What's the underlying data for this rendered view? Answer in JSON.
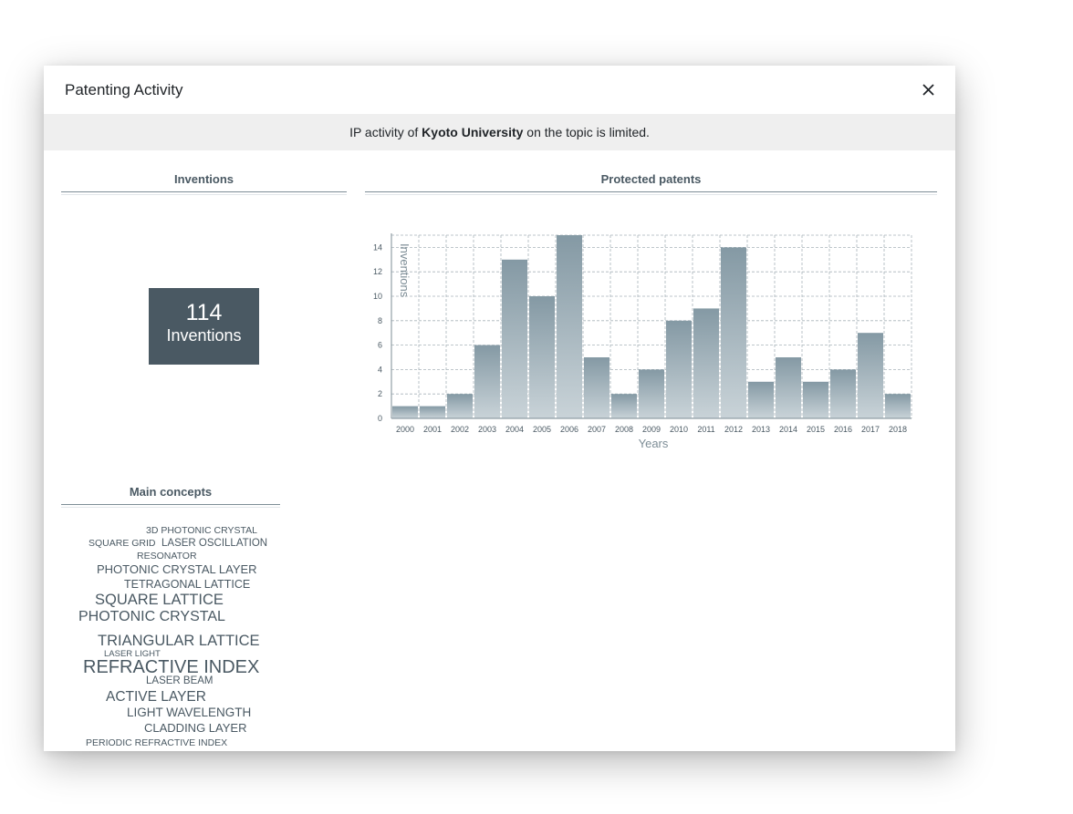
{
  "modal": {
    "title": "Patenting Activity",
    "close_label": "×"
  },
  "notice": {
    "prefix": "IP activity of ",
    "org": "Kyoto University",
    "suffix": " on the topic is limited."
  },
  "inventions": {
    "title": "Inventions",
    "count": "114",
    "label": "Inventions"
  },
  "patents": {
    "title": "Protected patents"
  },
  "chart_data": {
    "type": "bar",
    "categories": [
      "2000",
      "2001",
      "2002",
      "2003",
      "2004",
      "2005",
      "2006",
      "2007",
      "2008",
      "2009",
      "2010",
      "2011",
      "2012",
      "2013",
      "2014",
      "2015",
      "2016",
      "2017",
      "2018"
    ],
    "values": [
      1,
      1,
      2,
      6,
      13,
      10,
      15,
      5,
      2,
      4,
      8,
      9,
      14,
      3,
      5,
      3,
      4,
      7,
      2
    ],
    "ylabel": "Inventions",
    "xlabel": "Years",
    "ylim": [
      0,
      15
    ],
    "yticks": [
      "0",
      "2",
      "4",
      "6",
      "8",
      "10",
      "12",
      "14"
    ],
    "grid": true,
    "colors": {
      "bar_top": "#8499a4",
      "bar_bottom": "#c9d3d8",
      "axis": "#7d8d96",
      "grid": "#a9b4ba"
    }
  },
  "concepts": {
    "title": "Main concepts",
    "words": [
      {
        "text": "3D PHOTONIC CRYSTAL"
      },
      {
        "text": "SQUARE GRID"
      },
      {
        "text": "LASER OSCILLATION"
      },
      {
        "text": "RESONATOR"
      },
      {
        "text": "PHOTONIC CRYSTAL LAYER"
      },
      {
        "text": "TETRAGONAL LATTICE"
      },
      {
        "text": "SQUARE LATTICE"
      },
      {
        "text": "PHOTONIC CRYSTAL"
      },
      {
        "text": "TRIANGULAR LATTICE"
      },
      {
        "text": "LASER LIGHT"
      },
      {
        "text": "REFRACTIVE INDEX"
      },
      {
        "text": "LASER BEAM"
      },
      {
        "text": "ACTIVE LAYER"
      },
      {
        "text": "LIGHT WAVELENGTH"
      },
      {
        "text": "CLADDING LAYER"
      },
      {
        "text": "PERIODIC REFRACTIVE INDEX"
      }
    ]
  }
}
